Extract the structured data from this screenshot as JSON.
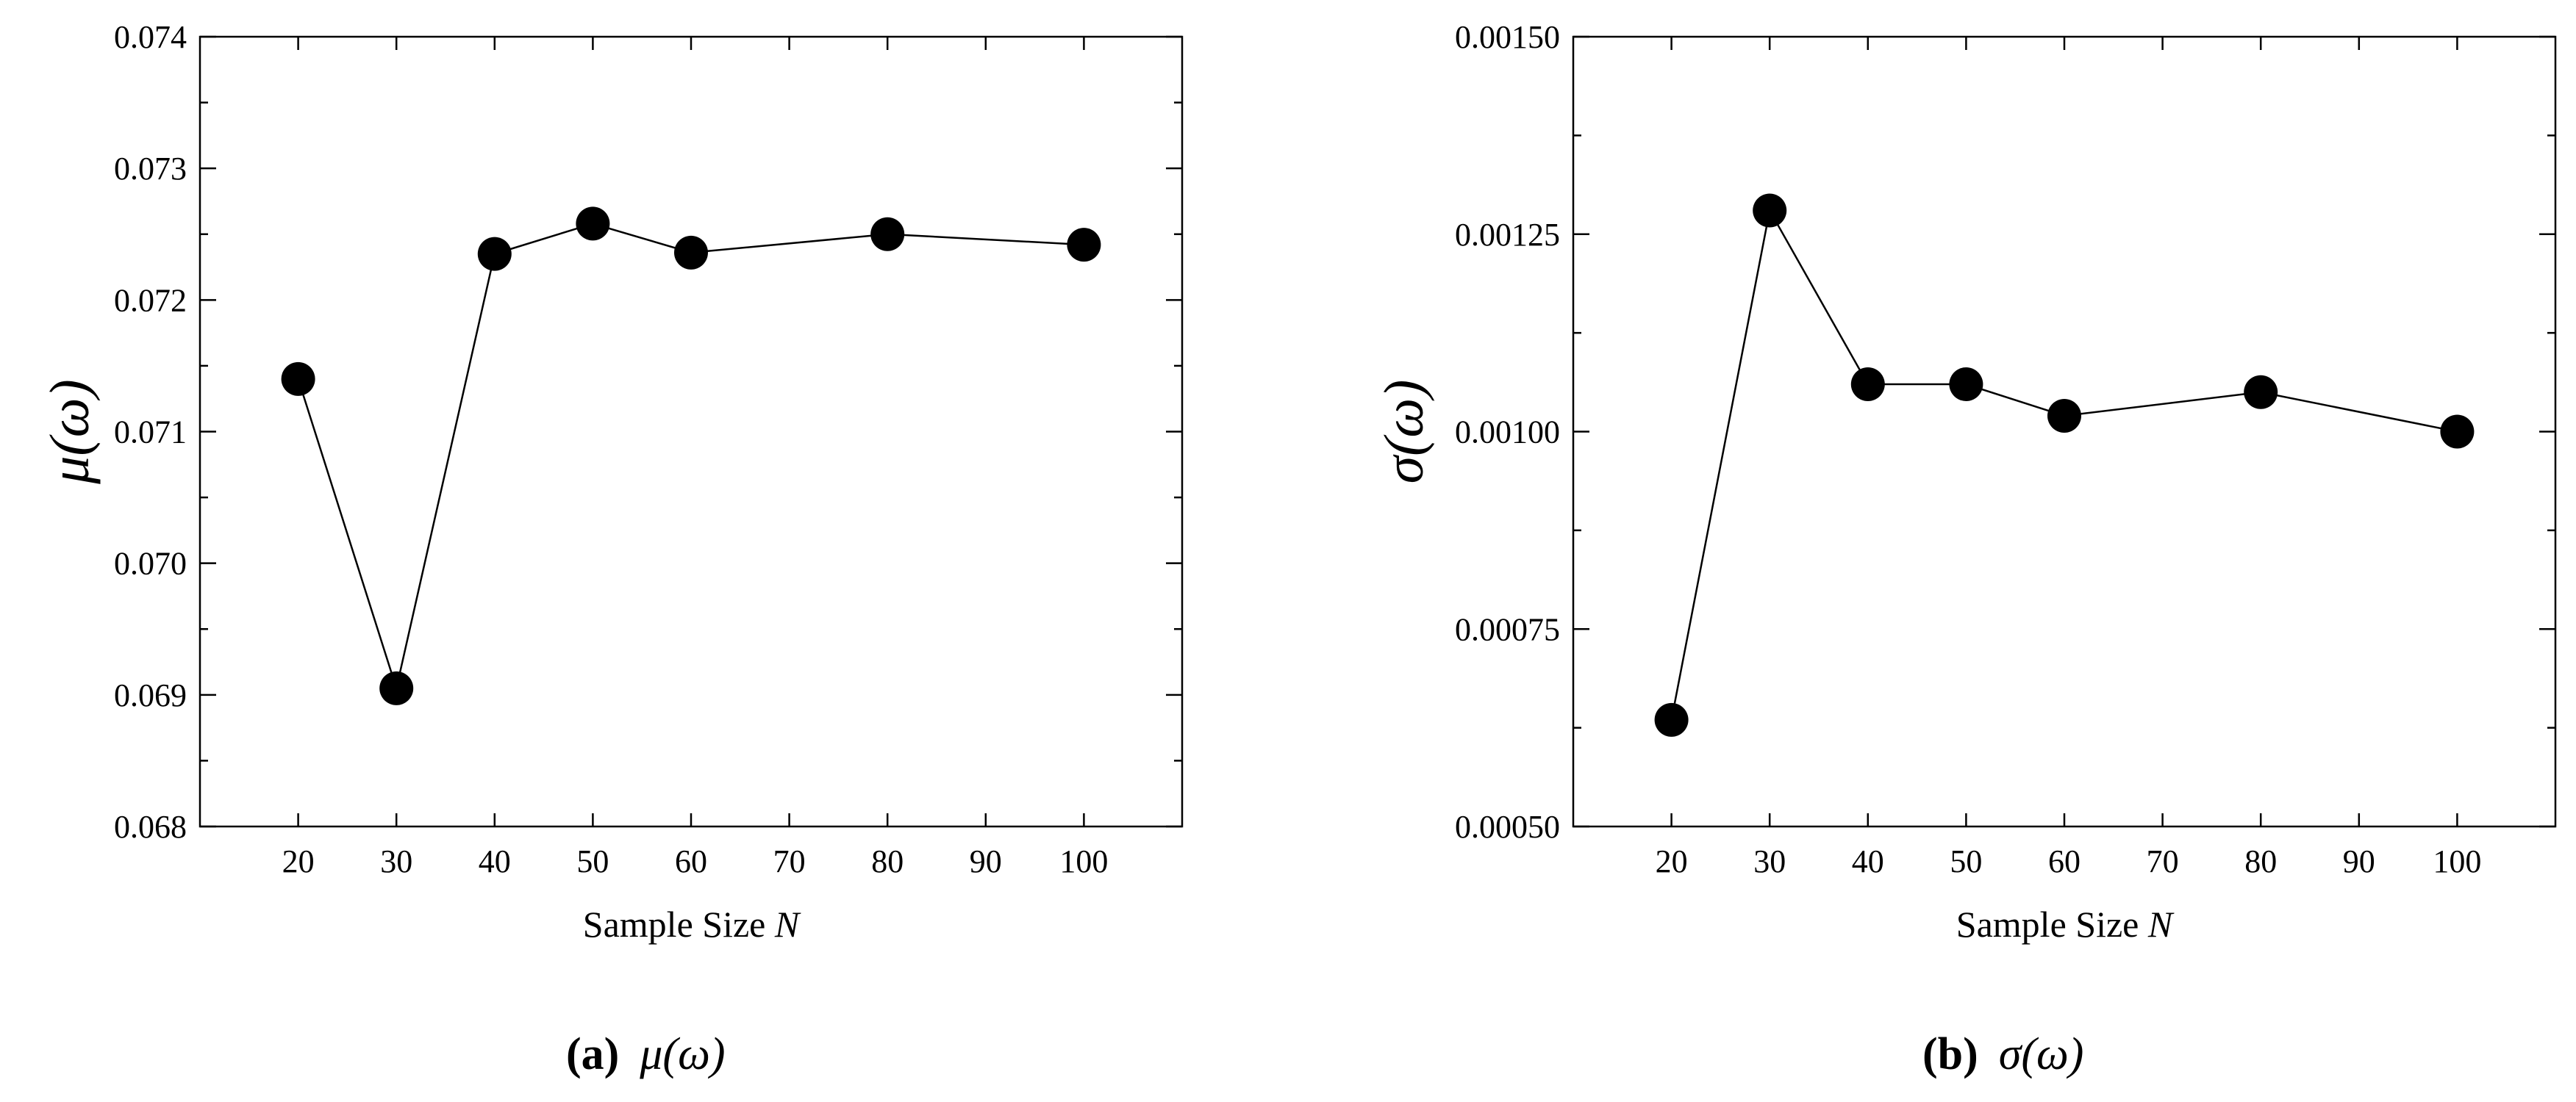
{
  "colors": {
    "line": "#000000",
    "marker": "#000000",
    "background": "#ffffff"
  },
  "chart_data": [
    {
      "type": "line",
      "panel": "a",
      "caption_label": "(a)",
      "caption_symbol": "μ(ω)",
      "xlabel": "Sample Size",
      "xlabel_var": "N",
      "ylabel": "μ(ω)",
      "x": [
        20,
        30,
        40,
        50,
        60,
        80,
        100
      ],
      "series": [
        {
          "values": [
            0.0714,
            0.06905,
            0.07235,
            0.07258,
            0.07236,
            0.0725,
            0.07242
          ]
        }
      ],
      "xlim": [
        10,
        110
      ],
      "ylim": [
        0.068,
        0.074
      ],
      "xticks": [
        "20",
        "30",
        "40",
        "50",
        "60",
        "70",
        "80",
        "90",
        "100"
      ],
      "yticks": [
        "0.068",
        "0.069",
        "0.070",
        "0.071",
        "0.072",
        "0.073",
        "0.074"
      ],
      "grid": false,
      "marker": "filled-circle"
    },
    {
      "type": "line",
      "panel": "b",
      "caption_label": "(b)",
      "caption_symbol": "σ(ω)",
      "xlabel": "Sample Size",
      "xlabel_var": "N",
      "ylabel": "σ(ω)",
      "x": [
        20,
        30,
        40,
        50,
        60,
        80,
        100
      ],
      "series": [
        {
          "values": [
            0.000635,
            0.00128,
            0.00106,
            0.00106,
            0.00102,
            0.00105,
            0.001
          ]
        }
      ],
      "xlim": [
        10,
        110
      ],
      "ylim": [
        0.0005,
        0.0015
      ],
      "xticks": [
        "20",
        "30",
        "40",
        "50",
        "60",
        "70",
        "80",
        "90",
        "100"
      ],
      "yticks": [
        "0.00050",
        "0.00075",
        "0.00100",
        "0.00125",
        "0.00150"
      ],
      "grid": false,
      "marker": "filled-circle"
    }
  ]
}
